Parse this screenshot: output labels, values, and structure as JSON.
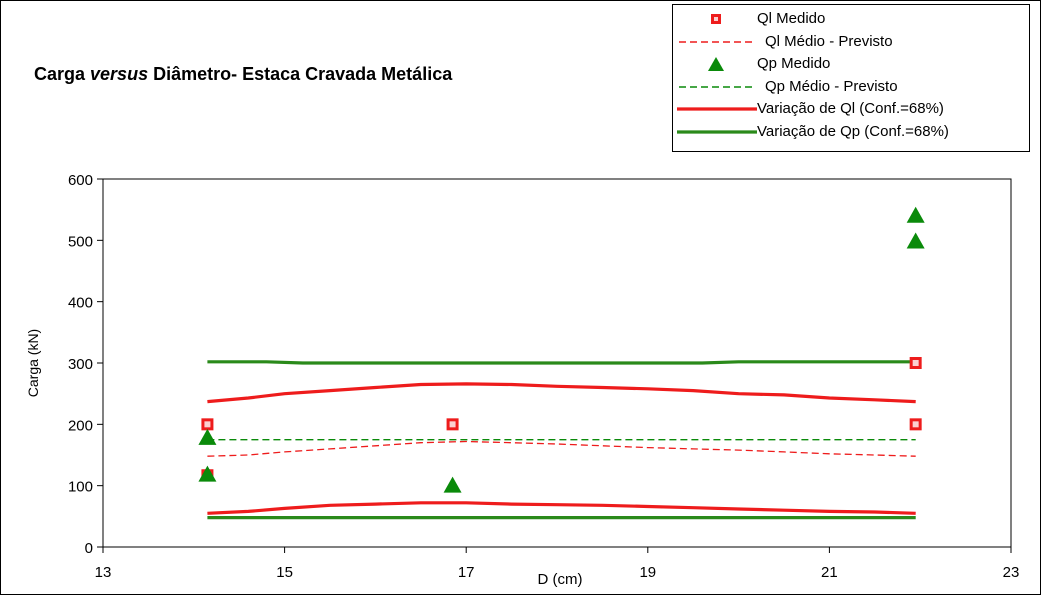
{
  "title": {
    "part1": "Carga ",
    "part2": "versus",
    "part3": " Diâmetro- Estaca Cravada Metálica"
  },
  "legend": [
    {
      "label": "Ql Medido",
      "kind": "square",
      "color": "#ee1c1c"
    },
    {
      "label": "Ql Médio - Previsto",
      "kind": "dash",
      "color": "#ee1c1c"
    },
    {
      "label": "Qp Medido",
      "kind": "triangle",
      "color": "#0a8a0a"
    },
    {
      "label": "Qp Médio - Previsto",
      "kind": "dash",
      "color": "#0a8a0a"
    },
    {
      "label": "Variação de Ql (Conf.=68%)",
      "kind": "solid",
      "color": "#ee1c1c"
    },
    {
      "label": "Variação de Qp (Conf.=68%)",
      "kind": "solid",
      "color": "#2a8a1a"
    }
  ],
  "chart_data": {
    "type": "scatter",
    "title": "Carga versus Diâmetro- Estaca Cravada Metálica",
    "xlabel": "D (cm)",
    "ylabel": "Carga (kN)",
    "xlim": [
      13,
      23
    ],
    "ylim": [
      0,
      600
    ],
    "xticks": [
      13,
      15,
      17,
      19,
      21,
      23
    ],
    "yticks": [
      0,
      100,
      200,
      300,
      400,
      500,
      600
    ],
    "grid": false,
    "legend_position": "top-right",
    "series": [
      {
        "name": "Ql Medido",
        "kind": "scatter",
        "marker": "square",
        "color": "#ee1c1c",
        "points": [
          [
            14.15,
            200
          ],
          [
            14.15,
            117
          ],
          [
            16.85,
            200
          ],
          [
            21.95,
            300
          ],
          [
            21.95,
            200
          ]
        ]
      },
      {
        "name": "Ql Médio - Previsto",
        "kind": "line",
        "style": "dashed",
        "color": "#ee1c1c",
        "points": [
          [
            14.15,
            148
          ],
          [
            14.6,
            150
          ],
          [
            15.0,
            155
          ],
          [
            15.5,
            160
          ],
          [
            16.0,
            165
          ],
          [
            16.5,
            170
          ],
          [
            17.0,
            172
          ],
          [
            17.5,
            170
          ],
          [
            18.0,
            168
          ],
          [
            18.5,
            165
          ],
          [
            19.0,
            162
          ],
          [
            19.5,
            160
          ],
          [
            20.0,
            158
          ],
          [
            20.5,
            155
          ],
          [
            21.0,
            152
          ],
          [
            21.5,
            150
          ],
          [
            21.95,
            148
          ]
        ]
      },
      {
        "name": "Qp Medido",
        "kind": "scatter",
        "marker": "triangle",
        "color": "#0a8a0a",
        "points": [
          [
            14.15,
            178
          ],
          [
            14.15,
            118
          ],
          [
            16.85,
            100
          ],
          [
            21.95,
            540
          ],
          [
            21.95,
            498
          ]
        ]
      },
      {
        "name": "Qp Médio - Previsto",
        "kind": "line",
        "style": "dashed",
        "color": "#0a8a0a",
        "points": [
          [
            14.15,
            175
          ],
          [
            21.95,
            175
          ]
        ]
      },
      {
        "name": "Variação de Ql (Conf.=68%) - superior",
        "kind": "line",
        "style": "solid",
        "color": "#ee1c1c",
        "points": [
          [
            14.15,
            237
          ],
          [
            14.6,
            243
          ],
          [
            15.0,
            250
          ],
          [
            15.5,
            255
          ],
          [
            16.0,
            260
          ],
          [
            16.5,
            265
          ],
          [
            17.0,
            266
          ],
          [
            17.5,
            265
          ],
          [
            18.0,
            262
          ],
          [
            18.5,
            260
          ],
          [
            19.0,
            258
          ],
          [
            19.5,
            255
          ],
          [
            20.0,
            250
          ],
          [
            20.5,
            248
          ],
          [
            21.0,
            243
          ],
          [
            21.5,
            240
          ],
          [
            21.95,
            237
          ]
        ]
      },
      {
        "name": "Variação de Ql (Conf.=68%) - inferior",
        "kind": "line",
        "style": "solid",
        "color": "#ee1c1c",
        "points": [
          [
            14.15,
            55
          ],
          [
            14.6,
            58
          ],
          [
            15.0,
            63
          ],
          [
            15.5,
            68
          ],
          [
            16.0,
            70
          ],
          [
            16.5,
            72
          ],
          [
            17.0,
            72
          ],
          [
            17.5,
            70
          ],
          [
            18.0,
            69
          ],
          [
            18.5,
            68
          ],
          [
            19.0,
            66
          ],
          [
            19.5,
            64
          ],
          [
            20.0,
            62
          ],
          [
            20.5,
            60
          ],
          [
            21.0,
            58
          ],
          [
            21.5,
            57
          ],
          [
            21.95,
            55
          ]
        ]
      },
      {
        "name": "Variação de Qp (Conf.=68%) - superior",
        "kind": "line",
        "style": "solid",
        "color": "#2a8a1a",
        "points": [
          [
            14.15,
            302
          ],
          [
            14.8,
            302
          ],
          [
            15.2,
            300
          ],
          [
            19.6,
            300
          ],
          [
            20.0,
            302
          ],
          [
            21.95,
            302
          ]
        ]
      },
      {
        "name": "Variação de Qp (Conf.=68%) - inferior",
        "kind": "line",
        "style": "solid",
        "color": "#2a8a1a",
        "points": [
          [
            14.15,
            48
          ],
          [
            21.95,
            48
          ]
        ]
      }
    ]
  }
}
